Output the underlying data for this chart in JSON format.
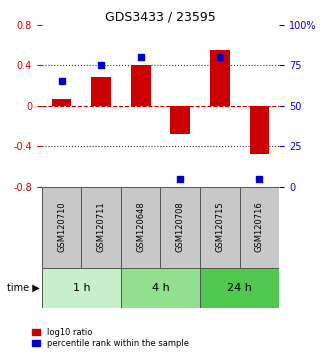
{
  "title": "GDS3433 / 23595",
  "samples": [
    "GSM120710",
    "GSM120711",
    "GSM120648",
    "GSM120708",
    "GSM120715",
    "GSM120716"
  ],
  "log10_ratio": [
    0.07,
    0.28,
    0.4,
    -0.28,
    0.55,
    -0.48
  ],
  "percentile_rank": [
    65,
    75,
    80,
    5,
    80,
    5
  ],
  "time_groups": [
    {
      "label": "1 h",
      "start": 0,
      "end": 2,
      "color": "#c8f0c8"
    },
    {
      "label": "4 h",
      "start": 2,
      "end": 4,
      "color": "#90e090"
    },
    {
      "label": "24 h",
      "start": 4,
      "end": 6,
      "color": "#50c850"
    }
  ],
  "ylim_left": [
    -0.8,
    0.8
  ],
  "ylim_right": [
    0,
    100
  ],
  "bar_color": "#cc0000",
  "dot_color": "#0000cc",
  "sample_bg_color": "#c8c8c8",
  "sample_border_color": "#555555",
  "hline_color_zero": "#cc0000",
  "hline_color_dotted": "#333333",
  "left_yticks": [
    0.8,
    0.4,
    0.0,
    -0.4,
    -0.8
  ],
  "right_yticks": [
    100,
    75,
    50,
    25,
    0
  ],
  "legend_labels": [
    "log10 ratio",
    "percentile rank within the sample"
  ],
  "background_color": "#ffffff"
}
